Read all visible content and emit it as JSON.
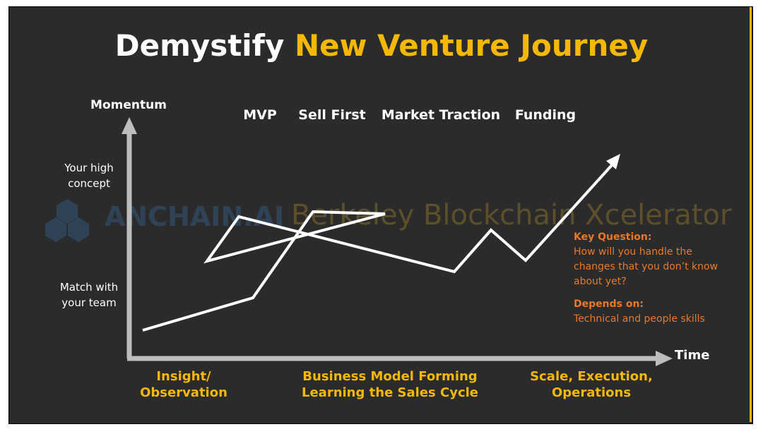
{
  "title": {
    "lead": "Demystify",
    "highlight": "New Venture Journey"
  },
  "watermark": {
    "left": "ANCHAIN.AI",
    "right": "Berkeley Blockchain Xcelerator"
  },
  "axes": {
    "y_label": "Momentum",
    "x_label": "Time"
  },
  "stages": [
    "MVP",
    "Sell First",
    "Market Traction",
    "Funding"
  ],
  "y_labels": {
    "high": [
      "Your high",
      "concept"
    ],
    "low": [
      "Match with",
      "your team"
    ]
  },
  "phases": [
    [
      "Insight/",
      "Observation"
    ],
    [
      "Business Model Forming",
      "Learning the Sales Cycle"
    ],
    [
      "Scale, Execution,",
      "Operations"
    ]
  ],
  "note": {
    "question_heading": "Key Question:",
    "question_lines": [
      "How will you handle the",
      "changes that you don’t know",
      "about yet?"
    ],
    "depends_heading": "Depends on:",
    "depends_text": "Technical and people skills"
  }
}
